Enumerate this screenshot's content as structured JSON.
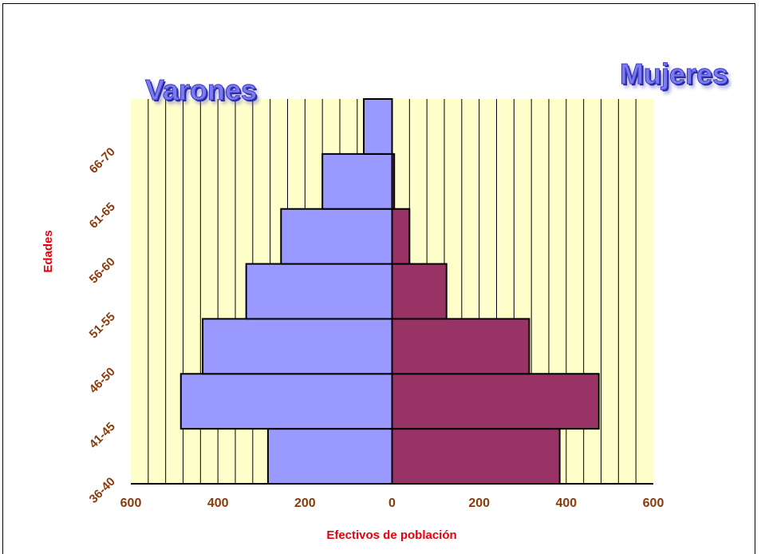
{
  "legend": {
    "left_title": "Varones",
    "right_title": "Mujeres"
  },
  "colors": {
    "plot_bg": "#ffffcc",
    "varones": "#9999ff",
    "mujeres": "#993366",
    "tick_text": "#8b3a0a",
    "axis_label": "#e8000b",
    "grid": "#000000"
  },
  "chart_data": {
    "type": "bar",
    "orientation": "horizontal",
    "subtype": "population-pyramid",
    "categories": [
      "36-40",
      "41-45",
      "46-50",
      "51-55",
      "56-60",
      "61-65",
      "66-70"
    ],
    "series": [
      {
        "name": "Varones",
        "side": "left",
        "values": [
          285,
          485,
          435,
          335,
          255,
          160,
          65
        ]
      },
      {
        "name": "Mujeres",
        "side": "right",
        "values": [
          385,
          475,
          315,
          125,
          40,
          5,
          0
        ]
      }
    ],
    "xlabel": "Efectivos de población",
    "ylabel": "Edades",
    "xlim": [
      -600,
      600
    ],
    "xticks": [
      "600",
      "400",
      "200",
      "0",
      "200",
      "400",
      "600"
    ],
    "gridline_step": 40,
    "grid": true
  }
}
